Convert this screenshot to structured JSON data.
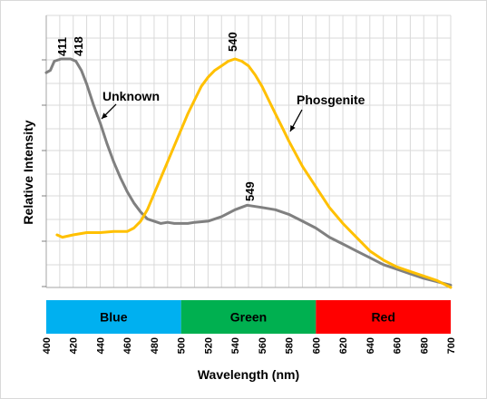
{
  "chart_data": {
    "type": "line",
    "title": "",
    "xlabel": "Wavelength (nm)",
    "ylabel": "Relative Intensity",
    "xlim": [
      400,
      700
    ],
    "ylim": [
      0,
      1
    ],
    "x_ticks": [
      400,
      420,
      440,
      460,
      480,
      500,
      520,
      540,
      560,
      580,
      600,
      620,
      640,
      660,
      680,
      700
    ],
    "y_tick_labels_shown": false,
    "grid": true,
    "colors": {
      "Unknown": "#808080",
      "Phosgenite": "#ffc000",
      "grid": "#d9d9d9"
    },
    "series": [
      {
        "name": "Unknown",
        "label_text": "Unknown",
        "points": [
          [
            400,
            0.94
          ],
          [
            403,
            0.95
          ],
          [
            406,
            0.99
          ],
          [
            411,
            1.0
          ],
          [
            418,
            1.0
          ],
          [
            422,
            0.99
          ],
          [
            426,
            0.95
          ],
          [
            430,
            0.89
          ],
          [
            435,
            0.8
          ],
          [
            440,
            0.72
          ],
          [
            445,
            0.63
          ],
          [
            450,
            0.55
          ],
          [
            455,
            0.48
          ],
          [
            460,
            0.42
          ],
          [
            465,
            0.37
          ],
          [
            470,
            0.33
          ],
          [
            475,
            0.3
          ],
          [
            480,
            0.29
          ],
          [
            485,
            0.28
          ],
          [
            490,
            0.285
          ],
          [
            495,
            0.28
          ],
          [
            500,
            0.28
          ],
          [
            505,
            0.28
          ],
          [
            510,
            0.285
          ],
          [
            520,
            0.29
          ],
          [
            530,
            0.31
          ],
          [
            540,
            0.34
          ],
          [
            549,
            0.36
          ],
          [
            560,
            0.35
          ],
          [
            570,
            0.34
          ],
          [
            580,
            0.32
          ],
          [
            590,
            0.29
          ],
          [
            600,
            0.26
          ],
          [
            610,
            0.22
          ],
          [
            620,
            0.19
          ],
          [
            630,
            0.16
          ],
          [
            640,
            0.13
          ],
          [
            650,
            0.1
          ],
          [
            660,
            0.08
          ],
          [
            670,
            0.06
          ],
          [
            680,
            0.04
          ],
          [
            690,
            0.025
          ],
          [
            700,
            0.01
          ]
        ]
      },
      {
        "name": "Phosgenite",
        "label_text": "Phosgenite",
        "points": [
          [
            408,
            0.23
          ],
          [
            412,
            0.22
          ],
          [
            420,
            0.23
          ],
          [
            430,
            0.24
          ],
          [
            440,
            0.24
          ],
          [
            450,
            0.245
          ],
          [
            460,
            0.245
          ],
          [
            465,
            0.26
          ],
          [
            470,
            0.29
          ],
          [
            475,
            0.34
          ],
          [
            480,
            0.41
          ],
          [
            485,
            0.48
          ],
          [
            490,
            0.55
          ],
          [
            495,
            0.62
          ],
          [
            500,
            0.69
          ],
          [
            505,
            0.76
          ],
          [
            510,
            0.82
          ],
          [
            515,
            0.88
          ],
          [
            520,
            0.92
          ],
          [
            525,
            0.95
          ],
          [
            530,
            0.97
          ],
          [
            535,
            0.99
          ],
          [
            540,
            1.0
          ],
          [
            545,
            0.99
          ],
          [
            550,
            0.97
          ],
          [
            555,
            0.93
          ],
          [
            560,
            0.88
          ],
          [
            565,
            0.82
          ],
          [
            570,
            0.76
          ],
          [
            575,
            0.7
          ],
          [
            580,
            0.64
          ],
          [
            590,
            0.53
          ],
          [
            600,
            0.44
          ],
          [
            610,
            0.35
          ],
          [
            620,
            0.28
          ],
          [
            630,
            0.22
          ],
          [
            640,
            0.16
          ],
          [
            650,
            0.12
          ],
          [
            660,
            0.09
          ],
          [
            670,
            0.07
          ],
          [
            680,
            0.05
          ],
          [
            690,
            0.03
          ],
          [
            700,
            0.0
          ]
        ]
      }
    ],
    "peak_labels": [
      {
        "text": "411",
        "x": 411,
        "y": 1.0
      },
      {
        "text": "418",
        "x": 418,
        "y": 1.0
      },
      {
        "text": "540",
        "x": 540,
        "y": 1.0
      },
      {
        "text": "549",
        "x": 549,
        "y": 0.36
      }
    ],
    "color_bands": [
      {
        "label": "Blue",
        "from": 400,
        "to": 500,
        "color": "#00b0f0"
      },
      {
        "label": "Green",
        "from": 500,
        "to": 600,
        "color": "#00b050"
      },
      {
        "label": "Red",
        "from": 600,
        "to": 700,
        "color": "#ff0000"
      }
    ]
  }
}
